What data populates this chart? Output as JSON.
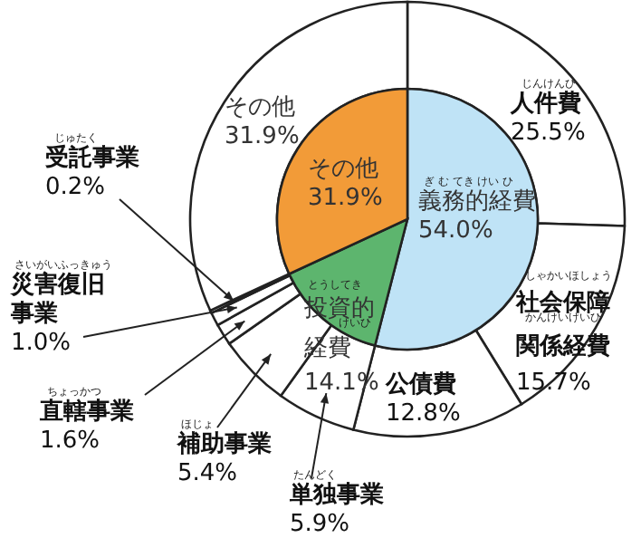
{
  "chart_data": [
    {
      "type": "pie",
      "categories": [
        "義務的経費",
        "投資的経費",
        "その他"
      ],
      "values": [
        54.0,
        14.1,
        31.9
      ],
      "colors": [
        "#bfe3f6",
        "#5db56e",
        "#f29b38"
      ],
      "value_labels": [
        "54.0%",
        "14.1%",
        "31.9%"
      ],
      "annotations": [
        "ぎ む てき けい ひ",
        "とうしてき",
        "けいひ"
      ]
    },
    {
      "type": "donut",
      "categories": [
        "人件費",
        "社会保障関係経費",
        "公債費",
        "単独事業",
        "補助事業",
        "直轄事業",
        "災害復旧事業",
        "受託事業",
        "その他"
      ],
      "values": [
        25.5,
        15.7,
        12.8,
        5.9,
        5.4,
        1.6,
        1.0,
        0.2,
        31.9
      ],
      "colors": [
        "#ffffff",
        "#ffffff",
        "#ffffff",
        "#ffffff",
        "#ffffff",
        "#ffffff",
        "#ffffff",
        "#ffffff",
        "#ffffff"
      ],
      "value_labels": [
        "25.5%",
        "15.7%",
        "12.8%",
        "5.9%",
        "5.4%",
        "1.6%",
        "1.0%",
        "0.2%",
        "31.9%"
      ],
      "annotations": [
        "じんけんひ",
        "しゃかいほしょう",
        "かんけいけいひ",
        "たんどく",
        "ほじょ",
        "ちょっかつ",
        "さいがいふっきゅう",
        "じゅたく"
      ]
    }
  ]
}
